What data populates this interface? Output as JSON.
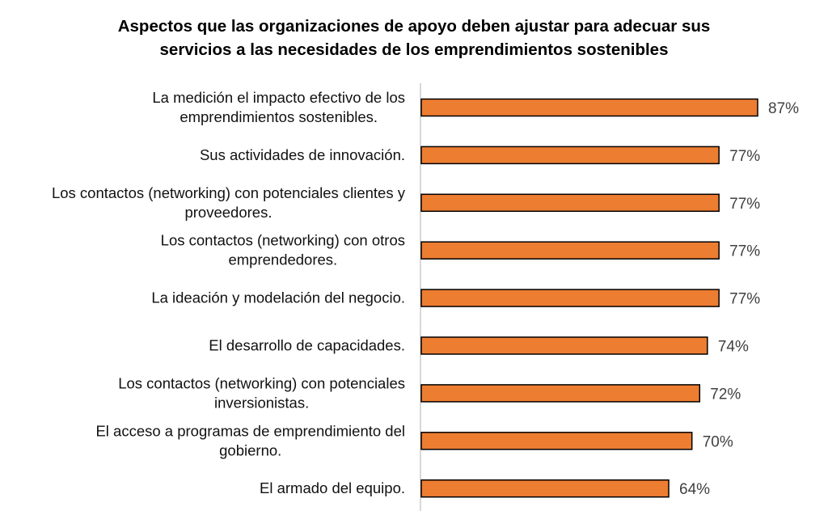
{
  "chart_data": {
    "type": "bar",
    "orientation": "horizontal",
    "title_lines": [
      "Aspectos que las organizaciones de apoyo deben ajustar para adecuar sus",
      "servicios a las necesidades de los emprendimientos sostenibles"
    ],
    "categories": [
      [
        "La medición el impacto efectivo de los",
        "emprendimientos sostenibles."
      ],
      [
        "Sus actividades de innovación."
      ],
      [
        "Los contactos (networking) con potenciales clientes y",
        "proveedores."
      ],
      [
        "Los contactos (networking) con otros",
        "emprendedores."
      ],
      [
        "La ideación y modelación del negocio."
      ],
      [
        "El desarrollo de capacidades."
      ],
      [
        "Los contactos (networking) con potenciales",
        "inversionistas."
      ],
      [
        "El acceso a programas de emprendimiento del",
        "gobierno."
      ],
      [
        "El armado del equipo."
      ]
    ],
    "values": [
      87,
      77,
      77,
      77,
      77,
      74,
      72,
      70,
      64
    ],
    "value_labels": [
      "87%",
      "77%",
      "77%",
      "77%",
      "77%",
      "74%",
      "72%",
      "70%",
      "64%"
    ],
    "unit": "%",
    "xlim": [
      0,
      100
    ],
    "grid": false,
    "legend": "none",
    "colors": {
      "bar_fill": "#ED7D31",
      "bar_stroke": "#000000",
      "axis": "#BFBFBF",
      "value_text": "#404040"
    }
  }
}
